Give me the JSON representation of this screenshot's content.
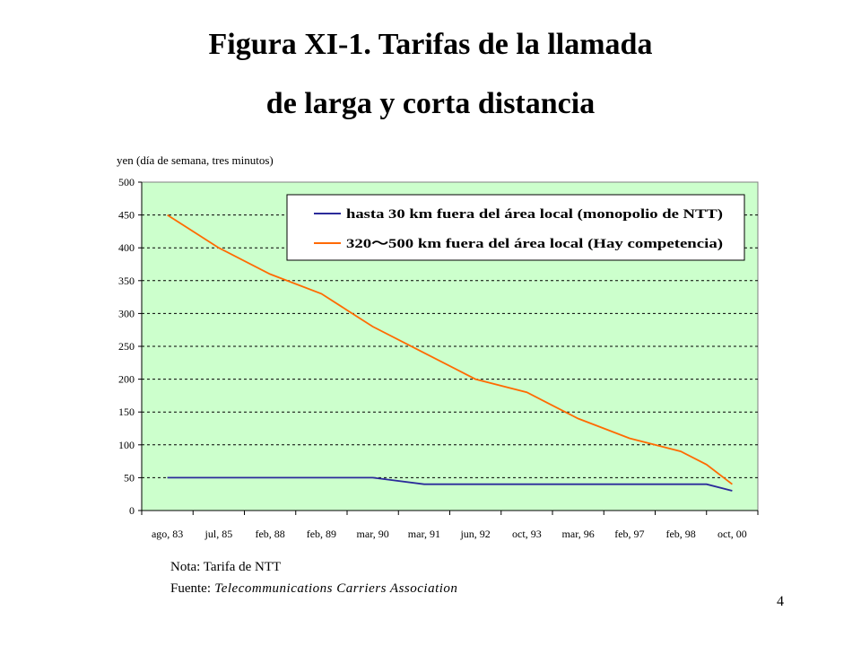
{
  "slide": {
    "title_line1": "Figura XI-1. Tarifas de la llamada",
    "title_line2": "de larga y corta distancia",
    "note_label": "Nota:",
    "note_text": " Tarifa de NTT",
    "source_label": "Fuente:",
    "source_text": " Telecommunications Carriers Association",
    "page_number": "4"
  },
  "chart_data": {
    "type": "line",
    "title": "",
    "xlabel": "",
    "ylabel": "yen (día de semana, tres minutos)",
    "categories": [
      "ago, 83",
      "jul, 85",
      "feb, 88",
      "feb, 89",
      "mar, 90",
      "mar, 91",
      "jun, 92",
      "oct, 93",
      "mar, 96",
      "feb, 97",
      "feb, 98",
      "oct, 00"
    ],
    "x": [
      0,
      1,
      2,
      3,
      3.5,
      4,
      5,
      6,
      7,
      7.5,
      8,
      8.5,
      9,
      10,
      10.5,
      11
    ],
    "series": [
      {
        "name": "hasta 30 km fuera del área local (monopolio de NTT)",
        "color": "#2b2b9a",
        "values": [
          50,
          50,
          50,
          50,
          50,
          50,
          40,
          40,
          40,
          40,
          40,
          40,
          40,
          40,
          40,
          30
        ]
      },
      {
        "name": "320～500 km fuera del área local (Hay competencia)",
        "color": "#ff6a00",
        "values": [
          450,
          400,
          360,
          330,
          305,
          280,
          240,
          200,
          180,
          160,
          140,
          125,
          110,
          90,
          70,
          40
        ]
      }
    ],
    "ylim": [
      0,
      500
    ],
    "yticks": [
      0,
      50,
      100,
      150,
      200,
      250,
      300,
      350,
      400,
      450,
      500
    ],
    "grid": true,
    "legend": "top-right",
    "plot_background": "#ccffcc"
  }
}
